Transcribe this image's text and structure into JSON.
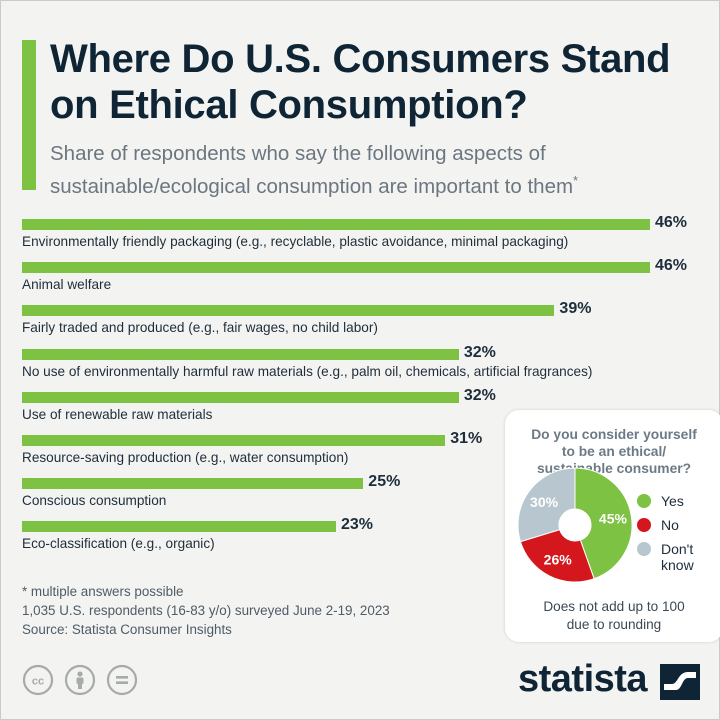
{
  "title": "Where Do U.S. Consumers Stand on Ethical Consumption?",
  "subtitle": "Share of respondents who say the following aspects of sustainable/ecological consumption are important to them",
  "subtitle_mark": "*",
  "colors": {
    "accent": "#7dc242",
    "yes": "#7dc242",
    "no": "#d4171c",
    "dont_know": "#b8c7cf"
  },
  "chart_data": [
    {
      "type": "bar",
      "orientation": "horizontal",
      "categories": [
        "Environmentally friendly packaging (e.g., recyclable, plastic avoidance, minimal packaging)",
        "Animal welfare",
        "Fairly traded and produced (e.g., fair wages, no child labor)",
        "No use of environmentally harmful raw materials (e.g., palm oil, chemicals, artificial fragrances)",
        "Use of renewable raw materials",
        "Resource-saving production (e.g., water consumption)",
        "Conscious consumption",
        "Eco-classification (e.g., organic)"
      ],
      "values": [
        46,
        46,
        39,
        32,
        32,
        31,
        25,
        23
      ],
      "value_labels": [
        "46%",
        "46%",
        "39%",
        "32%",
        "32%",
        "31%",
        "25%",
        "23%"
      ],
      "unit": "%"
    },
    {
      "type": "pie",
      "title": "Do you consider yourself to be an ethical/ sustainable consumer?",
      "categories": [
        "Yes",
        "No",
        "Don't know"
      ],
      "values": [
        45,
        26,
        30
      ],
      "value_labels": [
        "45%",
        "26%",
        "30%"
      ],
      "donut": true
    }
  ],
  "inset": {
    "question_lines": [
      "Do you consider yourself",
      "to be an ethical/",
      "sustainable consumer?"
    ],
    "legend": [
      {
        "label_lines": [
          "Yes"
        ],
        "color": "#7dc242"
      },
      {
        "label_lines": [
          "No"
        ],
        "color": "#d4171c"
      },
      {
        "label_lines": [
          "Don't",
          "know"
        ],
        "color": "#b8c7cf"
      }
    ],
    "note_lines": [
      "Does not add up to 100",
      "due to rounding"
    ]
  },
  "notes": [
    "* multiple answers possible",
    "1,035 U.S. respondents (16-83 y/o) surveyed June 2-19, 2023",
    "Source: Statista Consumer Insights"
  ],
  "brand": "statista",
  "license_icons": [
    "creative-commons-icon",
    "attribution-icon",
    "no-derivatives-icon"
  ]
}
